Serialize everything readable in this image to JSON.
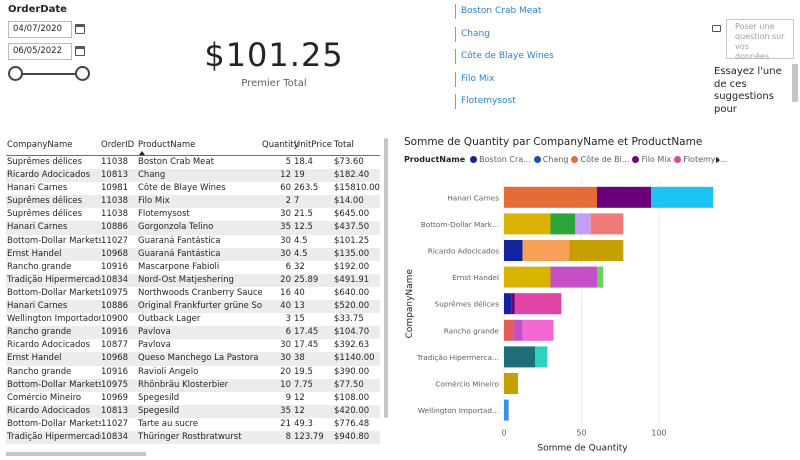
{
  "slicer": {
    "title": "OrderDate",
    "start_date": "04/07/2020",
    "end_date": "06/05/2022"
  },
  "kpi": {
    "value": "$101.25",
    "label": "Premier Total"
  },
  "products": [
    "Boston Crab Meat",
    "Chang",
    "Côte de Blaye Wines",
    "Filo Mix",
    "Flotemysost"
  ],
  "qa": {
    "placeholder": "Poser une question sur vos données",
    "suggestion": "Essayez l'une de ces suggestions pour"
  },
  "table": {
    "headers": [
      "CompanyName",
      "OrderID",
      "ProductName",
      "Quantity",
      "UnitPrice",
      "Total"
    ],
    "rows": [
      [
        "Suprêmes délices",
        "11038",
        "Boston Crab Meat",
        "5",
        "18.4",
        "$73.60"
      ],
      [
        "Ricardo Adocicados",
        "10813",
        "Chang",
        "12",
        "19",
        "$182.40"
      ],
      [
        "Hanari Carnes",
        "10981",
        "Côte de Blaye Wines",
        "60",
        "263.5",
        "$15810.00"
      ],
      [
        "Suprêmes délices",
        "11038",
        "Filo Mix",
        "2",
        "7",
        "$14.00"
      ],
      [
        "Suprêmes délices",
        "11038",
        "Flotemysost",
        "30",
        "21.5",
        "$645.00"
      ],
      [
        "Hanari Carnes",
        "10886",
        "Gorgonzola Telino",
        "35",
        "12.5",
        "$437.50"
      ],
      [
        "Bottom-Dollar Markets",
        "11027",
        "Guaraná Fantástica",
        "30",
        "4.5",
        "$101.25"
      ],
      [
        "Ernst Handel",
        "10968",
        "Guaraná Fantástica",
        "30",
        "4.5",
        "$135.00"
      ],
      [
        "Rancho grande",
        "10916",
        "Mascarpone Fabioli",
        "6",
        "32",
        "$192.00"
      ],
      [
        "Tradição Hipermercados",
        "10834",
        "Nord-Ost Matjeshering",
        "20",
        "25.89",
        "$491.91"
      ],
      [
        "Bottom-Dollar Markets",
        "10975",
        "Northwoods Cranberry Sauce",
        "16",
        "40",
        "$640.00"
      ],
      [
        "Hanari Carnes",
        "10886",
        "Original Frankfurter grüne Soße",
        "40",
        "13",
        "$520.00"
      ],
      [
        "Wellington Importadora",
        "10900",
        "Outback Lager",
        "3",
        "15",
        "$33.75"
      ],
      [
        "Rancho grande",
        "10916",
        "Pavlova",
        "6",
        "17.45",
        "$104.70"
      ],
      [
        "Ricardo Adocicados",
        "10877",
        "Pavlova",
        "30",
        "17.45",
        "$392.63"
      ],
      [
        "Ernst Handel",
        "10968",
        "Queso Manchego La Pastora",
        "30",
        "38",
        "$1140.00"
      ],
      [
        "Rancho grande",
        "10916",
        "Ravioli Angelo",
        "20",
        "19.5",
        "$390.00"
      ],
      [
        "Bottom-Dollar Markets",
        "10975",
        "Rhönbräu Klosterbier",
        "10",
        "7.75",
        "$77.50"
      ],
      [
        "Comércio Mineiro",
        "10969",
        "Spegesild",
        "9",
        "12",
        "$108.00"
      ],
      [
        "Ricardo Adocicados",
        "10813",
        "Spegesild",
        "35",
        "12",
        "$420.00"
      ],
      [
        "Bottom-Dollar Markets",
        "11027",
        "Tarte au sucre",
        "21",
        "49.3",
        "$776.48"
      ],
      [
        "Tradição Hipermercados",
        "10834",
        "Thüringer Rostbratwurst",
        "8",
        "123.79",
        "$940.80"
      ]
    ]
  },
  "chart_data": {
    "type": "bar",
    "orientation": "horizontal",
    "stacked": true,
    "title": "Somme de Quantity par CompanyName et ProductName",
    "legend_title": "ProductName",
    "legend": [
      {
        "name": "Boston Cra...",
        "color": "#12239E"
      },
      {
        "name": "Chang",
        "color": "#1A4FC4"
      },
      {
        "name": "Côte de Bl...",
        "color": "#E66C37"
      },
      {
        "name": "Filo Mix",
        "color": "#6B007B"
      },
      {
        "name": "Flotemys...",
        "color": "#E044A7"
      }
    ],
    "xlabel": "Somme de Quantity",
    "ylabel": "CompanyName",
    "xlim": [
      0,
      140
    ],
    "xticks": [
      0,
      50,
      100
    ],
    "categories": [
      "Hanari Carnes",
      "Bottom-Dollar Mark...",
      "Ricardo Adocicados",
      "Ernst Handel",
      "Suprêmes délices",
      "Rancho grande",
      "Tradição Hipermerca...",
      "Comércio Mineiro",
      "Wellington Importad..."
    ],
    "stacks": [
      [
        {
          "v": 60,
          "color": "#E66C37"
        },
        {
          "v": 35,
          "color": "#6B007B"
        },
        {
          "v": 40,
          "color": "#1CC4F4"
        }
      ],
      [
        {
          "v": 30,
          "color": "#D9B300"
        },
        {
          "v": 16,
          "color": "#2CA63C"
        },
        {
          "v": 10,
          "color": "#C59DF4"
        },
        {
          "v": 21,
          "color": "#F07A7A"
        }
      ],
      [
        {
          "v": 12,
          "color": "#12239E"
        },
        {
          "v": 30,
          "color": "#F6A15A"
        },
        {
          "v": 35,
          "color": "#C4A000"
        }
      ],
      [
        {
          "v": 30,
          "color": "#D9B300"
        },
        {
          "v": 30,
          "color": "#C44FC6"
        },
        {
          "v": 4,
          "color": "#6CCF5E"
        }
      ],
      [
        {
          "v": 5,
          "color": "#12239E"
        },
        {
          "v": 2,
          "color": "#6B007B"
        },
        {
          "v": 30,
          "color": "#E044A7"
        }
      ],
      [
        {
          "v": 6,
          "color": "#E55D57"
        },
        {
          "v": 6,
          "color": "#C44FC6"
        },
        {
          "v": 20,
          "color": "#F26AD1"
        }
      ],
      [
        {
          "v": 20,
          "color": "#1F6D7A"
        },
        {
          "v": 8,
          "color": "#2FD1C0"
        }
      ],
      [
        {
          "v": 9,
          "color": "#C4A000"
        }
      ],
      [
        {
          "v": 3,
          "color": "#3A8DE8"
        }
      ]
    ]
  }
}
